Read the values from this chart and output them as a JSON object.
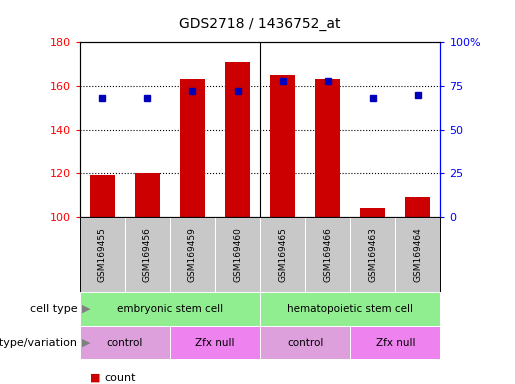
{
  "title": "GDS2718 / 1436752_at",
  "samples": [
    "GSM169455",
    "GSM169456",
    "GSM169459",
    "GSM169460",
    "GSM169465",
    "GSM169466",
    "GSM169463",
    "GSM169464"
  ],
  "counts": [
    119,
    120,
    163,
    171,
    165,
    163,
    104,
    109
  ],
  "percentile_ranks": [
    68,
    68,
    72,
    72,
    78,
    78,
    68,
    70
  ],
  "ylim_left": [
    100,
    180
  ],
  "ylim_right": [
    0,
    100
  ],
  "yticks_left": [
    100,
    120,
    140,
    160,
    180
  ],
  "yticks_right": [
    0,
    25,
    50,
    75,
    100
  ],
  "ytick_labels_right": [
    "0",
    "25",
    "50",
    "75",
    "100%"
  ],
  "bar_color": "#CC0000",
  "dot_color": "#0000BB",
  "bar_width": 0.55,
  "cell_type_color": "#90EE90",
  "genotype_colors": [
    "#DDA0DD",
    "#EE82EE",
    "#DDA0DD",
    "#EE82EE"
  ],
  "sample_bg_color": "#C8C8C8",
  "cell_type_boxes": [
    {
      "label": "embryonic stem cell",
      "start": 0,
      "end": 3
    },
    {
      "label": "hematopoietic stem cell",
      "start": 4,
      "end": 7
    }
  ],
  "genotype_boxes": [
    {
      "label": "control",
      "start": 0,
      "end": 1
    },
    {
      "label": "Zfx null",
      "start": 2,
      "end": 3
    },
    {
      "label": "control",
      "start": 4,
      "end": 5
    },
    {
      "label": "Zfx null",
      "start": 6,
      "end": 7
    }
  ]
}
